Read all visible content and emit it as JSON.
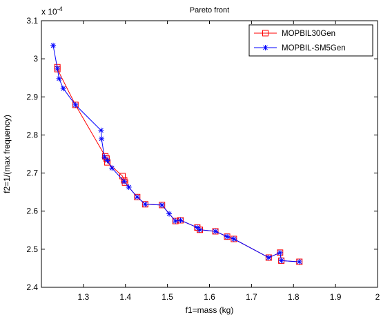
{
  "chart_data": {
    "type": "line",
    "title": "Pareto front",
    "xlabel": "f1=mass (kg)",
    "ylabel": "f2=1/(max frequency)",
    "y_scale_note": "x 10",
    "y_scale_exponent": "-4",
    "xlim": [
      1.2,
      2.0
    ],
    "ylim": [
      2.4,
      3.1
    ],
    "xticks": [
      "1.3",
      "1.4",
      "1.5",
      "1.6",
      "1.7",
      "1.8",
      "1.9",
      "2"
    ],
    "yticks": [
      "2.4",
      "2.5",
      "2.6",
      "2.7",
      "2.8",
      "2.9",
      "3",
      "3.1"
    ],
    "legend_position": "top-right",
    "series": [
      {
        "name": "MOPBIL30Gen",
        "color": "#ff0000",
        "marker": "square",
        "x": [
          1.238,
          1.238,
          1.281,
          1.352,
          1.355,
          1.357,
          1.393,
          1.397,
          1.399,
          1.428,
          1.447,
          1.487,
          1.519,
          1.531,
          1.571,
          1.577,
          1.614,
          1.642,
          1.658,
          1.741,
          1.768,
          1.771,
          1.814
        ],
        "y": [
          2.978,
          2.973,
          2.879,
          2.744,
          2.738,
          2.728,
          2.692,
          2.681,
          2.675,
          2.637,
          2.618,
          2.616,
          2.574,
          2.576,
          2.557,
          2.551,
          2.547,
          2.533,
          2.527,
          2.478,
          2.491,
          2.47,
          2.467
        ]
      },
      {
        "name": "MOPBIL-SM5Gen",
        "color": "#0000ff",
        "marker": "star",
        "x": [
          1.228,
          1.238,
          1.242,
          1.252,
          1.281,
          1.342,
          1.343,
          1.35,
          1.357,
          1.368,
          1.397,
          1.408,
          1.428,
          1.447,
          1.487,
          1.504,
          1.519,
          1.531,
          1.571,
          1.577,
          1.614,
          1.642,
          1.658,
          1.741,
          1.768,
          1.771,
          1.814
        ],
        "y": [
          3.035,
          2.975,
          2.948,
          2.922,
          2.879,
          2.812,
          2.79,
          2.742,
          2.733,
          2.713,
          2.678,
          2.663,
          2.637,
          2.618,
          2.616,
          2.593,
          2.574,
          2.576,
          2.557,
          2.551,
          2.547,
          2.533,
          2.527,
          2.478,
          2.491,
          2.47,
          2.467
        ]
      }
    ]
  }
}
